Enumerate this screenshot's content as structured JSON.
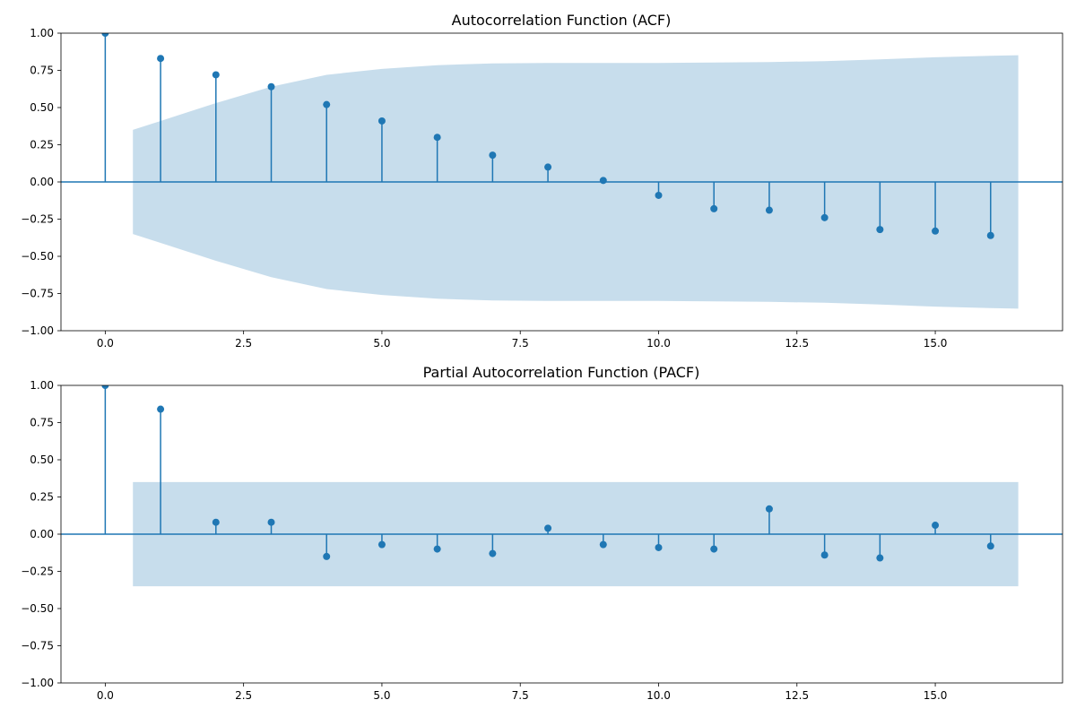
{
  "colors": {
    "stem": "#1f77b4",
    "confidence_band": "#1f77b4",
    "confidence_band_opacity": 0.25,
    "axes": "#000000"
  },
  "chart_data": [
    {
      "type": "stem",
      "title": "Autocorrelation Function (ACF)",
      "xlabel": "",
      "ylabel": "",
      "xlim": [
        -0.8,
        17.3
      ],
      "ylim": [
        -1.0,
        1.0
      ],
      "x_ticks": [
        0.0,
        2.5,
        5.0,
        7.5,
        10.0,
        12.5,
        15.0
      ],
      "x_tick_labels": [
        "0.0",
        "2.5",
        "5.0",
        "7.5",
        "10.0",
        "12.5",
        "15.0"
      ],
      "y_ticks": [
        -1.0,
        -0.75,
        -0.5,
        -0.25,
        0.0,
        0.25,
        0.5,
        0.75,
        1.0
      ],
      "y_tick_labels": [
        "−1.00",
        "−0.75",
        "−0.50",
        "−0.25",
        "0.00",
        "0.25",
        "0.50",
        "0.75",
        "1.00"
      ],
      "grid": false,
      "lags": [
        0,
        1,
        2,
        3,
        4,
        5,
        6,
        7,
        8,
        9,
        10,
        11,
        12,
        13,
        14,
        15,
        16
      ],
      "values": [
        1.0,
        0.83,
        0.72,
        0.64,
        0.52,
        0.41,
        0.3,
        0.18,
        0.1,
        0.01,
        -0.09,
        -0.18,
        -0.19,
        -0.24,
        -0.32,
        -0.33,
        -0.36
      ],
      "confidence_band": {
        "x": [
          0.5,
          1,
          2,
          3,
          4,
          5,
          6,
          7,
          8,
          9,
          10,
          11,
          12,
          13,
          14,
          15,
          16,
          16.5
        ],
        "upper": [
          0.35,
          0.41,
          0.53,
          0.64,
          0.72,
          0.76,
          0.785,
          0.797,
          0.8,
          0.8,
          0.8,
          0.803,
          0.806,
          0.812,
          0.824,
          0.838,
          0.848,
          0.852
        ]
      }
    },
    {
      "type": "stem",
      "title": "Partial Autocorrelation Function (PACF)",
      "xlabel": "",
      "ylabel": "",
      "xlim": [
        -0.8,
        17.3
      ],
      "ylim": [
        -1.0,
        1.0
      ],
      "x_ticks": [
        0.0,
        2.5,
        5.0,
        7.5,
        10.0,
        12.5,
        15.0
      ],
      "x_tick_labels": [
        "0.0",
        "2.5",
        "5.0",
        "7.5",
        "10.0",
        "12.5",
        "15.0"
      ],
      "y_ticks": [
        -1.0,
        -0.75,
        -0.5,
        -0.25,
        0.0,
        0.25,
        0.5,
        0.75,
        1.0
      ],
      "y_tick_labels": [
        "−1.00",
        "−0.75",
        "−0.50",
        "−0.25",
        "0.00",
        "0.25",
        "0.50",
        "0.75",
        "1.00"
      ],
      "grid": false,
      "lags": [
        0,
        1,
        2,
        3,
        4,
        5,
        6,
        7,
        8,
        9,
        10,
        11,
        12,
        13,
        14,
        15,
        16
      ],
      "values": [
        1.0,
        0.84,
        0.08,
        0.08,
        -0.15,
        -0.07,
        -0.1,
        -0.13,
        0.04,
        -0.07,
        -0.09,
        -0.1,
        0.17,
        -0.14,
        -0.16,
        0.06,
        -0.08
      ],
      "confidence_band": {
        "x": [
          0.5,
          16.5
        ],
        "upper": [
          0.35,
          0.35
        ]
      }
    }
  ]
}
